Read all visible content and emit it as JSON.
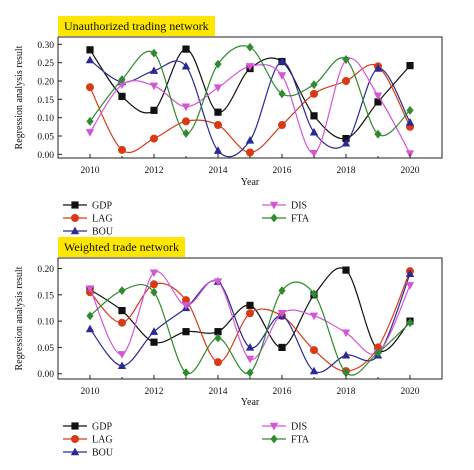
{
  "chart_data": [
    {
      "type": "line",
      "title": "Unauthorized trading network",
      "xlabel": "Year",
      "ylabel": "Regression analysis result",
      "xlim": [
        2009,
        2021
      ],
      "ylim": [
        -0.01,
        0.32
      ],
      "x": [
        2010,
        2011,
        2012,
        2013,
        2014,
        2015,
        2016,
        2017,
        2018,
        2019,
        2020
      ],
      "xticks": [
        2010,
        2012,
        2014,
        2016,
        2018,
        2020
      ],
      "yticks": [
        0.0,
        0.05,
        0.1,
        0.15,
        0.2,
        0.25,
        0.3
      ],
      "ytick_labels": [
        "0.00",
        "0.05",
        "0.10",
        "0.15",
        "0.20",
        "0.25",
        "0.30"
      ],
      "grid": false,
      "legend_position": "below",
      "series": [
        {
          "name": "GDP",
          "color": "#111111",
          "marker": "square",
          "values": [
            0.285,
            0.158,
            0.12,
            0.287,
            0.115,
            0.234,
            0.253,
            0.105,
            0.043,
            0.143,
            0.242
          ]
        },
        {
          "name": "LAG",
          "color": "#d93a16",
          "marker": "circle",
          "values": [
            0.183,
            0.012,
            0.043,
            0.09,
            0.08,
            0.005,
            0.08,
            0.165,
            0.2,
            0.24,
            0.075
          ]
        },
        {
          "name": "BOU",
          "color": "#2a2a96",
          "marker": "triangle-up",
          "values": [
            0.257,
            0.197,
            0.228,
            0.24,
            0.01,
            0.038,
            0.253,
            0.06,
            0.03,
            0.234,
            0.087
          ]
        },
        {
          "name": "DIS",
          "color": "#d655d6",
          "marker": "triangle-down",
          "values": [
            0.06,
            0.19,
            0.187,
            0.13,
            0.182,
            0.24,
            0.215,
            0.003,
            0.257,
            0.16,
            0.002
          ]
        },
        {
          "name": "FTA",
          "color": "#2e8b2e",
          "marker": "diamond",
          "values": [
            0.09,
            0.204,
            0.276,
            0.057,
            0.246,
            0.292,
            0.165,
            0.19,
            0.259,
            0.055,
            0.12
          ]
        }
      ]
    },
    {
      "type": "line",
      "title": "Weighted trade network",
      "xlabel": "Year",
      "ylabel": "Regression analysis result",
      "xlim": [
        2009,
        2021
      ],
      "ylim": [
        -0.01,
        0.22
      ],
      "x": [
        2010,
        2011,
        2012,
        2013,
        2014,
        2015,
        2016,
        2017,
        2018,
        2019,
        2020
      ],
      "xticks": [
        2010,
        2012,
        2014,
        2016,
        2018,
        2020
      ],
      "yticks": [
        0.0,
        0.05,
        0.1,
        0.15,
        0.2
      ],
      "ytick_labels": [
        "0.00",
        "0.05",
        "0.10",
        "0.15",
        "0.20"
      ],
      "grid": false,
      "legend_position": "below",
      "series": [
        {
          "name": "GDP",
          "color": "#111111",
          "marker": "square",
          "values": [
            0.16,
            0.12,
            0.06,
            0.08,
            0.08,
            0.13,
            0.05,
            0.15,
            0.197,
            0.045,
            0.1
          ]
        },
        {
          "name": "LAG",
          "color": "#d93a16",
          "marker": "circle",
          "values": [
            0.155,
            0.097,
            0.17,
            0.14,
            0.022,
            0.115,
            0.11,
            0.045,
            0.005,
            0.05,
            0.195
          ]
        },
        {
          "name": "BOU",
          "color": "#2a2a96",
          "marker": "triangle-up",
          "values": [
            0.085,
            0.015,
            0.08,
            0.125,
            0.175,
            0.05,
            0.11,
            0.005,
            0.035,
            0.035,
            0.19
          ]
        },
        {
          "name": "DIS",
          "color": "#d655d6",
          "marker": "triangle-down",
          "values": [
            0.162,
            0.037,
            0.192,
            0.13,
            0.175,
            0.028,
            0.115,
            0.11,
            0.078,
            0.04,
            0.168
          ]
        },
        {
          "name": "FTA",
          "color": "#2e8b2e",
          "marker": "diamond",
          "values": [
            0.11,
            0.158,
            0.155,
            0.002,
            0.068,
            0.002,
            0.158,
            0.152,
            0.002,
            0.04,
            0.097
          ]
        }
      ]
    }
  ]
}
